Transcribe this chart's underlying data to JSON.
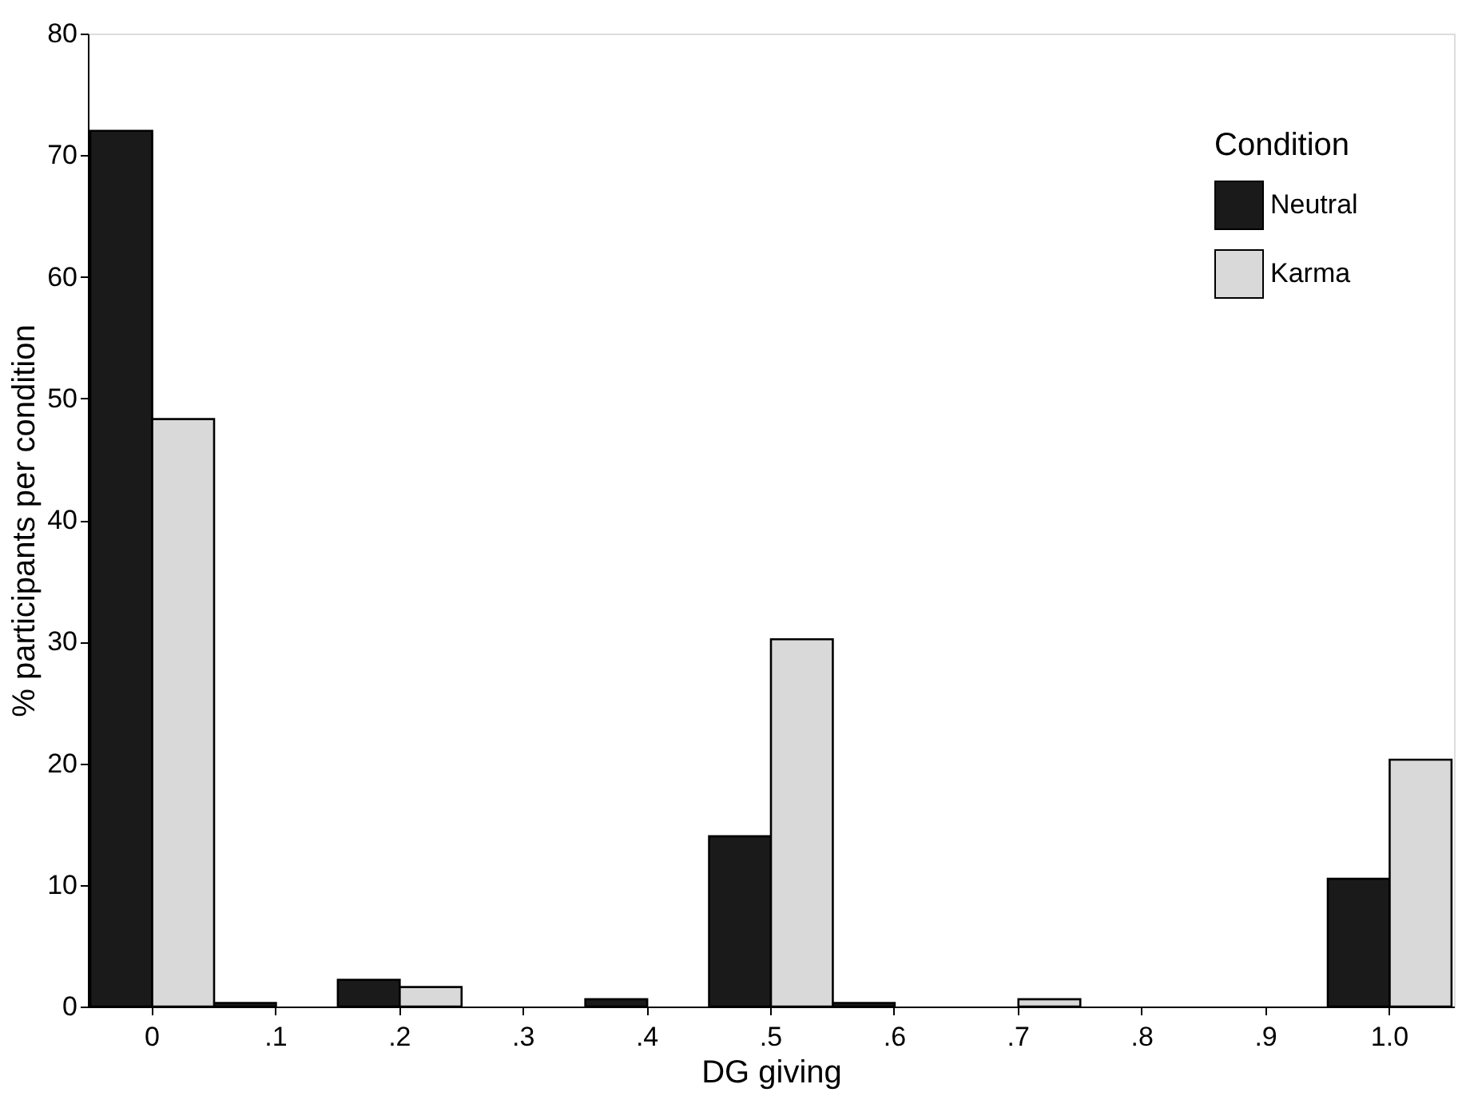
{
  "chart_data": {
    "type": "bar",
    "xlabel": "DG giving",
    "ylabel": "% participants per condition",
    "legend_title": "Condition",
    "legend": "top right",
    "grid": false,
    "categories": [
      "0",
      ".1",
      ".2",
      ".3",
      ".4",
      ".5",
      ".6",
      ".7",
      ".8",
      ".9",
      "1.0"
    ],
    "ylim": [
      0,
      80
    ],
    "yticks": [
      0,
      10,
      20,
      30,
      40,
      50,
      60,
      70,
      80
    ],
    "series": [
      {
        "name": "Neutral",
        "color": "#1a1a1a",
        "values": [
          72,
          0.3,
          2.2,
          null,
          0.6,
          14,
          0.3,
          null,
          null,
          null,
          10.5
        ]
      },
      {
        "name": "Karma",
        "color": "#d9d9d9",
        "values": [
          48.3,
          null,
          1.6,
          null,
          null,
          30.2,
          null,
          0.6,
          null,
          null,
          20.3
        ]
      }
    ]
  }
}
